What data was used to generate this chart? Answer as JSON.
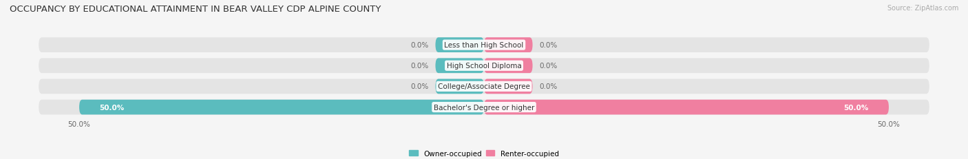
{
  "title": "OCCUPANCY BY EDUCATIONAL ATTAINMENT IN BEAR VALLEY CDP ALPINE COUNTY",
  "source": "Source: ZipAtlas.com",
  "categories": [
    "Less than High School",
    "High School Diploma",
    "College/Associate Degree",
    "Bachelor's Degree or higher"
  ],
  "owner_values": [
    0.0,
    0.0,
    0.0,
    50.0
  ],
  "renter_values": [
    0.0,
    0.0,
    0.0,
    50.0
  ],
  "owner_color": "#5bbcbe",
  "renter_color": "#f07fa0",
  "bar_bg_color": "#e4e4e4",
  "bar_height": 0.72,
  "xlim": [
    -55,
    55
  ],
  "xtick_labels": [
    "50.0%",
    "50.0%"
  ],
  "title_fontsize": 9.5,
  "source_fontsize": 7,
  "label_fontsize": 7.5,
  "value_fontsize": 7.5,
  "legend_fontsize": 7.5,
  "legend_owner": "Owner-occupied",
  "legend_renter": "Renter-occupied",
  "background_color": "#f5f5f5",
  "small_bar_width": 6.0
}
